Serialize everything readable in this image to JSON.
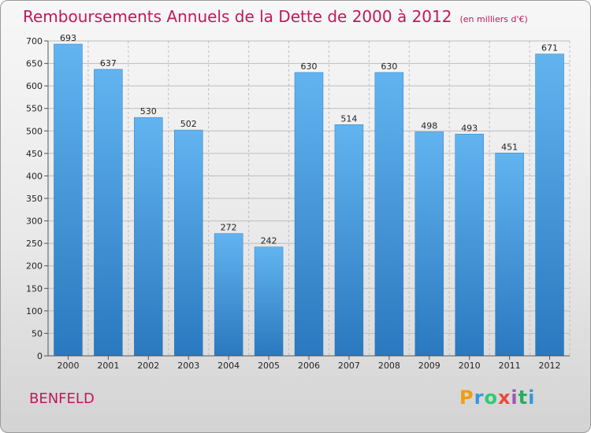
{
  "header": {
    "title": "Remboursements Annuels de la Dette de 2000 à 2012",
    "unit": "(en milliers d'€)"
  },
  "footer": {
    "commune": "BENFELD",
    "logo_letters": [
      "P",
      "r",
      "o",
      "x",
      "i",
      "t",
      "i"
    ],
    "logo_colors": [
      "#f39c12",
      "#3498db",
      "#2ecc71",
      "#e74c3c",
      "#9b59b6",
      "#27ae60",
      "#3498db"
    ]
  },
  "colors": {
    "bar": "#4a9de0",
    "bar_light": "#62b4f0",
    "bar_dark": "#2f7fc4",
    "title": "#c2185b",
    "grid": "#bdbdbd"
  },
  "chart_data": {
    "type": "bar",
    "categories": [
      "2000",
      "2001",
      "2002",
      "2003",
      "2004",
      "2005",
      "2006",
      "2007",
      "2008",
      "2009",
      "2010",
      "2011",
      "2012"
    ],
    "values": [
      693,
      637,
      530,
      502,
      272,
      242,
      630,
      514,
      630,
      498,
      493,
      451,
      671
    ],
    "ylim": [
      0,
      700
    ],
    "yticks": [
      0,
      50,
      100,
      150,
      200,
      250,
      300,
      350,
      400,
      450,
      500,
      550,
      600,
      650,
      700
    ],
    "grid": true,
    "data_labels": true
  }
}
